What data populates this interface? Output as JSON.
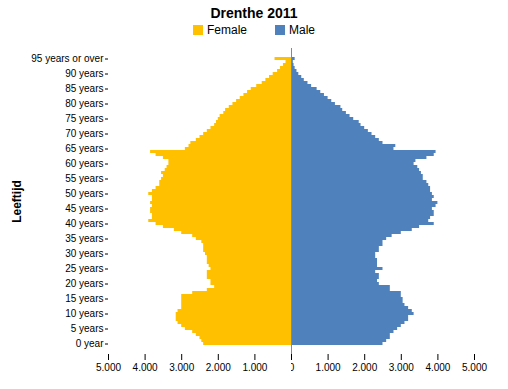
{
  "chart_data": {
    "type": "bar",
    "orientation": "horizontal",
    "title": "Drenthe 2011",
    "y_label": "Leeftijd",
    "legend": "top",
    "categories": [
      "0 year",
      null,
      null,
      null,
      null,
      "5 years",
      null,
      null,
      null,
      null,
      "10 years",
      null,
      null,
      null,
      null,
      "15 years",
      null,
      null,
      null,
      null,
      "20 years",
      null,
      null,
      null,
      null,
      "25 years",
      null,
      null,
      null,
      null,
      "30 years",
      null,
      null,
      null,
      null,
      "35 years",
      null,
      null,
      null,
      null,
      "40 years",
      null,
      null,
      null,
      null,
      "45 years",
      null,
      null,
      null,
      null,
      "50 years",
      null,
      null,
      null,
      null,
      "55 years",
      null,
      null,
      null,
      null,
      "60 years",
      null,
      null,
      null,
      null,
      "65 years",
      null,
      null,
      null,
      null,
      "70 years",
      null,
      null,
      null,
      null,
      "75 years",
      null,
      null,
      null,
      null,
      "80 years",
      null,
      null,
      null,
      null,
      "85 years",
      null,
      null,
      null,
      null,
      "90 years",
      null,
      null,
      null,
      null,
      "95 years or over"
    ],
    "series": [
      {
        "name": "Female",
        "color": "#ffc000",
        "values": [
          2400,
          2450,
          2500,
          2600,
          2700,
          2900,
          3000,
          3100,
          3150,
          3150,
          3150,
          3100,
          3000,
          3000,
          3000,
          3000,
          3000,
          2700,
          2300,
          2100,
          2200,
          2200,
          2300,
          2300,
          2300,
          2200,
          2250,
          2300,
          2300,
          2300,
          2350,
          2400,
          2400,
          2400,
          2450,
          2600,
          2700,
          3000,
          3200,
          3500,
          3700,
          3900,
          3800,
          3800,
          3850,
          3850,
          3800,
          3850,
          3800,
          3800,
          3900,
          3800,
          3700,
          3600,
          3600,
          3550,
          3500,
          3550,
          3450,
          3400,
          3350,
          3350,
          3500,
          3700,
          3850,
          2900,
          2800,
          2750,
          2600,
          2500,
          2400,
          2300,
          2200,
          2100,
          2050,
          2000,
          1950,
          1850,
          1800,
          1700,
          1600,
          1500,
          1400,
          1300,
          1200,
          1100,
          950,
          800,
          700,
          600,
          500,
          380,
          300,
          220,
          150,
          450
        ]
      },
      {
        "name": "Male",
        "color": "#4f81bd",
        "values": [
          2500,
          2600,
          2700,
          2700,
          2800,
          2900,
          3000,
          3100,
          3200,
          3200,
          3350,
          3300,
          3200,
          3100,
          3050,
          3050,
          3000,
          3000,
          2700,
          2700,
          2400,
          2350,
          2400,
          2400,
          2300,
          2500,
          2350,
          2350,
          2350,
          2300,
          2300,
          2400,
          2400,
          2500,
          2500,
          2600,
          2750,
          3000,
          3300,
          3500,
          3900,
          3750,
          3800,
          3900,
          3900,
          3850,
          3950,
          4000,
          3850,
          3900,
          3850,
          3800,
          3800,
          3750,
          3700,
          3600,
          3600,
          3550,
          3500,
          3450,
          3350,
          3400,
          3700,
          3900,
          3950,
          2800,
          2850,
          2500,
          2400,
          2300,
          2200,
          2100,
          2000,
          1900,
          1850,
          1700,
          1600,
          1500,
          1400,
          1350,
          1200,
          1100,
          1000,
          900,
          800,
          700,
          550,
          450,
          350,
          280,
          200,
          150,
          100,
          70,
          50,
          100
        ]
      }
    ],
    "xlim": [
      0,
      5000
    ],
    "xticks": [
      0,
      {
        "value": 1000,
        "label": "1.000"
      },
      {
        "value": 2000,
        "label": "2.000"
      },
      {
        "value": 3000,
        "label": "3.000"
      },
      {
        "value": 4000,
        "label": "4.000"
      },
      {
        "value": 5000,
        "label": "5.000"
      }
    ]
  }
}
